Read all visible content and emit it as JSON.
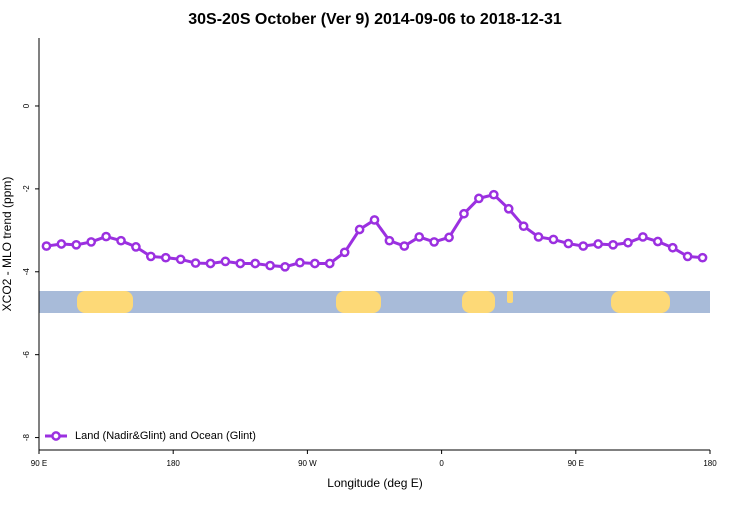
{
  "chart_data": {
    "type": "line",
    "title": "30S-20S October (Ver 9)   2014-09-06 to 2018-12-31",
    "x_label": "Longitude (deg E)",
    "y_label": "XCO2 - MLO trend (ppm)",
    "x": [
      95,
      105,
      115,
      125,
      135,
      145,
      155,
      165,
      175,
      185,
      195,
      205,
      215,
      225,
      235,
      245,
      255,
      265,
      275,
      285,
      295,
      305,
      315,
      325,
      335,
      345,
      355,
      365,
      375,
      385,
      395,
      405,
      415,
      425,
      435,
      445,
      455,
      465,
      475,
      485,
      495,
      505,
      515,
      525,
      535
    ],
    "series": [
      {
        "name": "Land (Nadir&Glint) and Ocean (Glint)",
        "color": "#9b30e0",
        "values": [
          -3.38,
          -3.33,
          -3.35,
          -3.28,
          -3.15,
          -3.25,
          -3.4,
          -3.63,
          -3.66,
          -3.7,
          -3.79,
          -3.8,
          -3.75,
          -3.8,
          -3.8,
          -3.85,
          -3.88,
          -3.78,
          -3.8,
          -3.8,
          -3.53,
          -2.98,
          -2.75,
          -3.25,
          -3.38,
          -3.16,
          -3.28,
          -3.17,
          -2.6,
          -2.23,
          -2.14,
          -2.48,
          -2.9,
          -3.16,
          -3.22,
          -3.32,
          -3.38,
          -3.33,
          -3.35,
          -3.3,
          -3.16,
          -3.27,
          -3.42,
          -3.63,
          -3.66
        ]
      }
    ],
    "xlim": [
      90,
      540
    ],
    "xticks": [
      {
        "value": 90,
        "label": "90 E"
      },
      {
        "value": 180,
        "label": "180"
      },
      {
        "value": 270,
        "label": "90 W"
      },
      {
        "value": 360,
        "label": "0"
      },
      {
        "value": 450,
        "label": "90 E"
      },
      {
        "value": 540,
        "label": "180"
      }
    ],
    "ylim": [
      -8.3,
      1.64
    ],
    "yticks": [
      -8,
      -6,
      -4,
      -2,
      0
    ],
    "legend": "bottom-left"
  }
}
